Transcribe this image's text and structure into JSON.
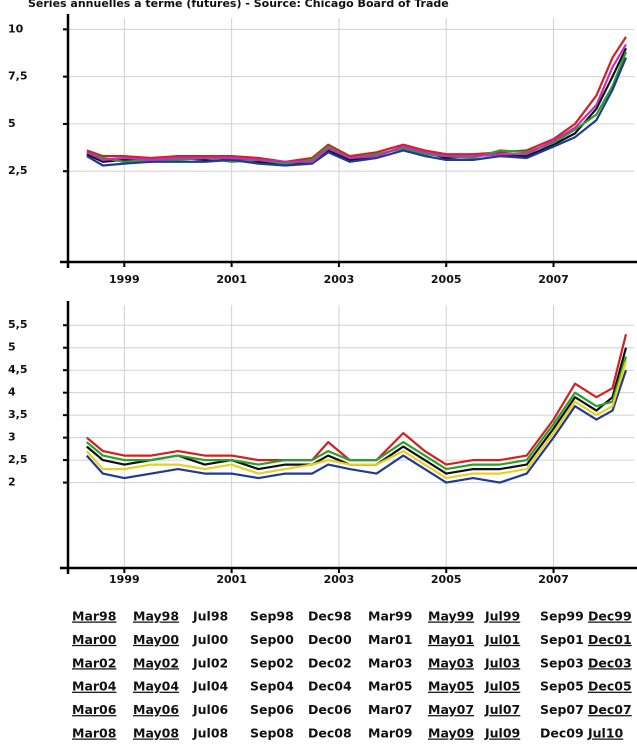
{
  "title": "Séries annuelles à terme (futures) - Source: Chicago Board of Trade",
  "chart_data": [
    {
      "type": "line",
      "grid": true,
      "x": [
        1998.3,
        1998.6,
        1999,
        1999.5,
        2000,
        2000.5,
        2001,
        2001.5,
        2002,
        2002.5,
        2002.8,
        2003.2,
        2003.7,
        2004.2,
        2004.6,
        2005,
        2005.5,
        2006,
        2006.5,
        2007,
        2007.4,
        2007.8,
        2008.1,
        2008.35
      ],
      "xlim": [
        1997.95,
        2008.5
      ],
      "xticks": [
        1999,
        2001,
        2003,
        2005,
        2007
      ],
      "ylim": [
        -2.3,
        10.6
      ],
      "yticks": [
        {
          "value": 2.5,
          "label": "2,5"
        },
        5,
        {
          "value": 7.5,
          "label": "7,5"
        },
        10
      ],
      "series": [
        {
          "color": "#111111",
          "values": [
            3.4,
            3.0,
            3.1,
            3.0,
            3.2,
            3.1,
            3.2,
            3.0,
            2.9,
            3.0,
            3.6,
            3.1,
            3.3,
            3.8,
            3.5,
            3.2,
            3.3,
            3.4,
            3.3,
            3.9,
            4.5,
            5.8,
            7.5,
            9.0
          ]
        },
        {
          "color": "#d42020",
          "values": [
            3.6,
            3.3,
            3.3,
            3.2,
            3.3,
            3.3,
            3.3,
            3.2,
            3.0,
            3.2,
            3.9,
            3.3,
            3.5,
            3.9,
            3.6,
            3.4,
            3.4,
            3.5,
            3.6,
            4.2,
            5.0,
            6.5,
            8.5,
            9.6
          ]
        },
        {
          "color": "#2aa02a",
          "values": [
            3.5,
            3.2,
            3.0,
            3.1,
            3.1,
            3.2,
            3.0,
            3.1,
            2.9,
            3.1,
            3.8,
            3.2,
            3.4,
            3.7,
            3.4,
            3.3,
            3.2,
            3.6,
            3.5,
            4.0,
            4.7,
            5.5,
            7.0,
            8.8
          ]
        },
        {
          "color": "#1f3a93",
          "values": [
            3.3,
            2.8,
            2.9,
            3.0,
            3.0,
            3.0,
            3.1,
            2.9,
            2.8,
            2.9,
            3.5,
            3.0,
            3.2,
            3.6,
            3.3,
            3.1,
            3.1,
            3.3,
            3.2,
            3.8,
            4.3,
            5.2,
            6.8,
            8.5
          ]
        },
        {
          "color": "#c030c0",
          "values": [
            3.5,
            3.1,
            3.2,
            3.1,
            3.2,
            3.2,
            3.2,
            3.1,
            3.0,
            3.0,
            3.7,
            3.2,
            3.3,
            3.8,
            3.5,
            3.3,
            3.3,
            3.4,
            3.4,
            4.1,
            4.8,
            6.0,
            8.0,
            9.2
          ]
        }
      ]
    },
    {
      "type": "line",
      "grid": true,
      "x": [
        1998.3,
        1998.6,
        1999,
        1999.5,
        2000,
        2000.5,
        2001,
        2001.5,
        2002,
        2002.5,
        2002.8,
        2003.2,
        2003.7,
        2004.2,
        2004.6,
        2005,
        2005.5,
        2006,
        2006.5,
        2007,
        2007.4,
        2007.8,
        2008.1,
        2008.35
      ],
      "xlim": [
        1997.95,
        2008.5
      ],
      "xticks": [
        1999,
        2001,
        2003,
        2005,
        2007
      ],
      "ylim": [
        0.1,
        5.95
      ],
      "yticks": [
        2,
        {
          "value": 2.5,
          "label": "2,5"
        },
        3,
        {
          "value": 3.5,
          "label": "3,5"
        },
        4,
        {
          "value": 4.5,
          "label": "4,5"
        },
        5,
        {
          "value": 5.5,
          "label": "5,5"
        }
      ],
      "series": [
        {
          "color": "#111111",
          "values": [
            2.8,
            2.5,
            2.4,
            2.5,
            2.6,
            2.4,
            2.5,
            2.3,
            2.4,
            2.4,
            2.6,
            2.4,
            2.4,
            2.8,
            2.5,
            2.2,
            2.3,
            2.3,
            2.4,
            3.2,
            3.9,
            3.6,
            3.9,
            5.0
          ]
        },
        {
          "color": "#d42020",
          "values": [
            3.0,
            2.7,
            2.6,
            2.6,
            2.7,
            2.6,
            2.6,
            2.5,
            2.5,
            2.5,
            2.9,
            2.5,
            2.5,
            3.1,
            2.7,
            2.4,
            2.5,
            2.5,
            2.6,
            3.4,
            4.2,
            3.9,
            4.1,
            5.3
          ]
        },
        {
          "color": "#2aa02a",
          "values": [
            2.9,
            2.6,
            2.5,
            2.5,
            2.6,
            2.5,
            2.5,
            2.4,
            2.5,
            2.5,
            2.7,
            2.5,
            2.5,
            2.9,
            2.6,
            2.3,
            2.4,
            2.4,
            2.5,
            3.3,
            4.0,
            3.7,
            3.8,
            4.8
          ]
        },
        {
          "color": "#1f3a93",
          "values": [
            2.6,
            2.2,
            2.1,
            2.2,
            2.3,
            2.2,
            2.2,
            2.1,
            2.2,
            2.2,
            2.4,
            2.3,
            2.2,
            2.6,
            2.3,
            2.0,
            2.1,
            2.0,
            2.2,
            3.0,
            3.7,
            3.4,
            3.6,
            4.5
          ]
        },
        {
          "color": "#e8d020",
          "values": [
            2.7,
            2.3,
            2.3,
            2.4,
            2.4,
            2.3,
            2.4,
            2.2,
            2.3,
            2.4,
            2.5,
            2.4,
            2.4,
            2.7,
            2.4,
            2.1,
            2.2,
            2.2,
            2.3,
            3.1,
            3.8,
            3.5,
            3.7,
            4.7
          ]
        }
      ]
    }
  ],
  "legend": {
    "items": [
      {
        "name": "Mar98",
        "color": "#1f3a93",
        "underline": true
      },
      {
        "name": "May98",
        "color": "#d42020",
        "underline": true
      },
      {
        "name": "Jul98",
        "color": "#2aa02a",
        "underline": false
      },
      {
        "name": "Sep98",
        "color": "#888888",
        "underline": false
      },
      {
        "name": "Dec98",
        "color": "#c8502a",
        "underline": false
      },
      {
        "name": "Mar99",
        "color": "#8a3a6a",
        "underline": false
      },
      {
        "name": "May99",
        "color": "#2aa0d8",
        "underline": true
      },
      {
        "name": "Jul99",
        "color": "#c030c0",
        "underline": true
      },
      {
        "name": "Sep99",
        "color": "#b0a020",
        "underline": false
      },
      {
        "name": "Dec99",
        "color": "#111111",
        "underline": true
      },
      {
        "name": "Mar00",
        "color": "#1f3a93",
        "underline": true
      },
      {
        "name": "May00",
        "color": "#d42020",
        "underline": true
      },
      {
        "name": "Jul00",
        "color": "#2aa02a",
        "underline": false
      },
      {
        "name": "Sep00",
        "color": "#888888",
        "underline": false
      },
      {
        "name": "Dec00",
        "color": "#c8502a",
        "underline": false
      },
      {
        "name": "Mar01",
        "color": "#8a3a6a",
        "underline": false
      },
      {
        "name": "May01",
        "color": "#2aa0d8",
        "underline": true
      },
      {
        "name": "Jul01",
        "color": "#c030c0",
        "underline": true
      },
      {
        "name": "Sep01",
        "color": "#b0a020",
        "underline": false
      },
      {
        "name": "Dec01",
        "color": "#111111",
        "underline": true
      },
      {
        "name": "Mar02",
        "color": "#1f3a93",
        "underline": true
      },
      {
        "name": "May02",
        "color": "#d42020",
        "underline": true
      },
      {
        "name": "Jul02",
        "color": "#2aa02a",
        "underline": false
      },
      {
        "name": "Sep02",
        "color": "#888888",
        "underline": false
      },
      {
        "name": "Dec02",
        "color": "#c8502a",
        "underline": false
      },
      {
        "name": "Mar03",
        "color": "#8a3a6a",
        "underline": false
      },
      {
        "name": "May03",
        "color": "#2aa0d8",
        "underline": true
      },
      {
        "name": "Jul03",
        "color": "#c030c0",
        "underline": true
      },
      {
        "name": "Sep03",
        "color": "#b0a020",
        "underline": false
      },
      {
        "name": "Dec03",
        "color": "#111111",
        "underline": true
      },
      {
        "name": "Mar04",
        "color": "#1f3a93",
        "underline": true
      },
      {
        "name": "May04",
        "color": "#d42020",
        "underline": true
      },
      {
        "name": "Jul04",
        "color": "#2aa02a",
        "underline": false
      },
      {
        "name": "Sep04",
        "color": "#888888",
        "underline": false
      },
      {
        "name": "Dec04",
        "color": "#c8502a",
        "underline": false
      },
      {
        "name": "Mar05",
        "color": "#8a3a6a",
        "underline": false
      },
      {
        "name": "May05",
        "color": "#2aa0d8",
        "underline": true
      },
      {
        "name": "Jul05",
        "color": "#c030c0",
        "underline": true
      },
      {
        "name": "Sep05",
        "color": "#b0a020",
        "underline": false
      },
      {
        "name": "Dec05",
        "color": "#111111",
        "underline": true
      },
      {
        "name": "Mar06",
        "color": "#1f3a93",
        "underline": true
      },
      {
        "name": "May06",
        "color": "#d42020",
        "underline": true
      },
      {
        "name": "Jul06",
        "color": "#2aa02a",
        "underline": false
      },
      {
        "name": "Sep06",
        "color": "#888888",
        "underline": false
      },
      {
        "name": "Dec06",
        "color": "#c8502a",
        "underline": false
      },
      {
        "name": "Mar07",
        "color": "#8a3a6a",
        "underline": false
      },
      {
        "name": "May07",
        "color": "#2aa0d8",
        "underline": true
      },
      {
        "name": "Jul07",
        "color": "#c030c0",
        "underline": true
      },
      {
        "name": "Sep07",
        "color": "#b0a020",
        "underline": false
      },
      {
        "name": "Dec07",
        "color": "#111111",
        "underline": true
      },
      {
        "name": "Mar08",
        "color": "#1f3a93",
        "underline": true
      },
      {
        "name": "May08",
        "color": "#d42020",
        "underline": true
      },
      {
        "name": "Jul08",
        "color": "#2aa02a",
        "underline": false
      },
      {
        "name": "Sep08",
        "color": "#888888",
        "underline": false
      },
      {
        "name": "Dec08",
        "color": "#c8502a",
        "underline": false
      },
      {
        "name": "Mar09",
        "color": "#8a3a6a",
        "underline": false
      },
      {
        "name": "May09",
        "color": "#2aa0d8",
        "underline": true
      },
      {
        "name": "Jul09",
        "color": "#c030c0",
        "underline": true
      },
      {
        "name": "Dec09",
        "color": "#b0a020",
        "underline": false
      },
      {
        "name": "Jul10",
        "color": "#111111",
        "underline": true
      }
    ]
  }
}
